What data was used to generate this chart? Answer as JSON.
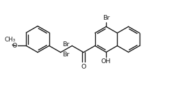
{
  "bg_color": "#ffffff",
  "line_color": "#1a1a1a",
  "line_width": 1.0,
  "font_size": 6.8,
  "fig_width": 2.82,
  "fig_height": 1.37,
  "dpi": 100,
  "xlim": [
    0,
    10.5
  ],
  "ylim": [
    0,
    4.5
  ]
}
